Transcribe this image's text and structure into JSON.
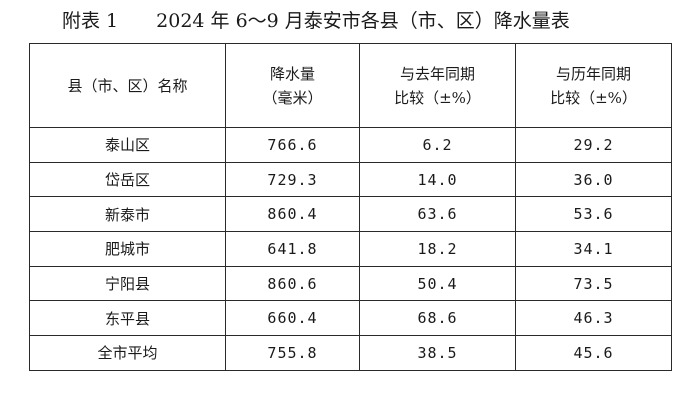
{
  "title": {
    "label": "附表 1",
    "text": "2024 年 6～9 月泰安市各县（市、区）降水量表"
  },
  "table": {
    "headers": {
      "name": "县（市、区）名称",
      "rain_line1": "降水量",
      "rain_line2": "（毫米）",
      "yoy_line1": "与去年同期",
      "yoy_line2": "比较（±%）",
      "hist_line1": "与历年同期",
      "hist_line2": "比较（±%）"
    },
    "rows": [
      {
        "name": "泰山区",
        "rain": "766.6",
        "yoy": "6.2",
        "hist": "29.2"
      },
      {
        "name": "岱岳区",
        "rain": "729.3",
        "yoy": "14.0",
        "hist": "36.0"
      },
      {
        "name": "新泰市",
        "rain": "860.4",
        "yoy": "63.6",
        "hist": "53.6"
      },
      {
        "name": "肥城市",
        "rain": "641.8",
        "yoy": "18.2",
        "hist": "34.1"
      },
      {
        "name": "宁阳县",
        "rain": "860.6",
        "yoy": "50.4",
        "hist": "73.5"
      },
      {
        "name": "东平县",
        "rain": "660.4",
        "yoy": "68.6",
        "hist": "46.3"
      },
      {
        "name": "全市平均",
        "rain": "755.8",
        "yoy": "38.5",
        "hist": "45.6"
      }
    ]
  }
}
